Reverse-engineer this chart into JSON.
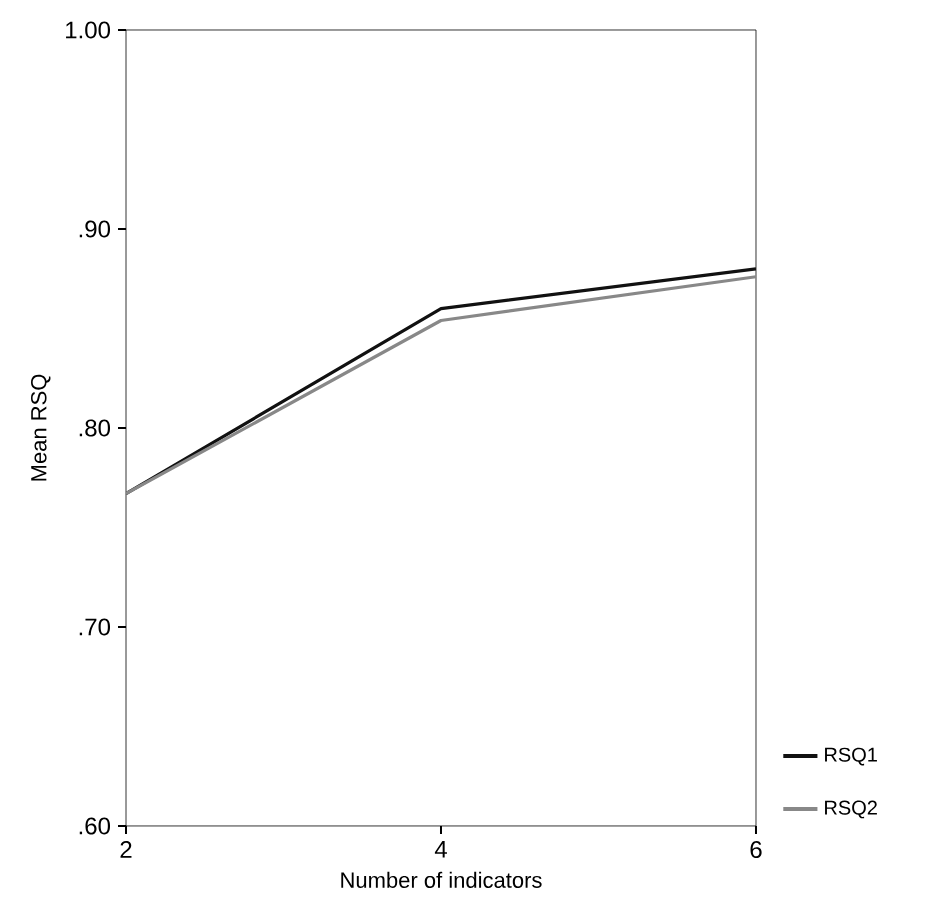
{
  "chart_data": {
    "type": "line",
    "xlabel": "Number of indicators",
    "ylabel": "Mean RSQ",
    "x": [
      2,
      4,
      6
    ],
    "xlim": [
      2,
      6
    ],
    "xticks": [
      2,
      4,
      6
    ],
    "ylim": [
      0.6,
      1.0
    ],
    "yticks": [
      {
        "value": 0.6,
        "label": ".60"
      },
      {
        "value": 0.7,
        "label": ".70"
      },
      {
        "value": 0.8,
        "label": ".80"
      },
      {
        "value": 0.9,
        "label": ".90"
      },
      {
        "value": 1.0,
        "label": "1.00"
      }
    ],
    "series": [
      {
        "name": "RSQ1",
        "color": "#111111",
        "values": [
          0.767,
          0.86,
          0.88
        ]
      },
      {
        "name": "RSQ2",
        "color": "#888888",
        "values": [
          0.767,
          0.854,
          0.876
        ]
      }
    ],
    "grid": false,
    "legend": "right",
    "marker": "none",
    "line_style": "solid"
  }
}
